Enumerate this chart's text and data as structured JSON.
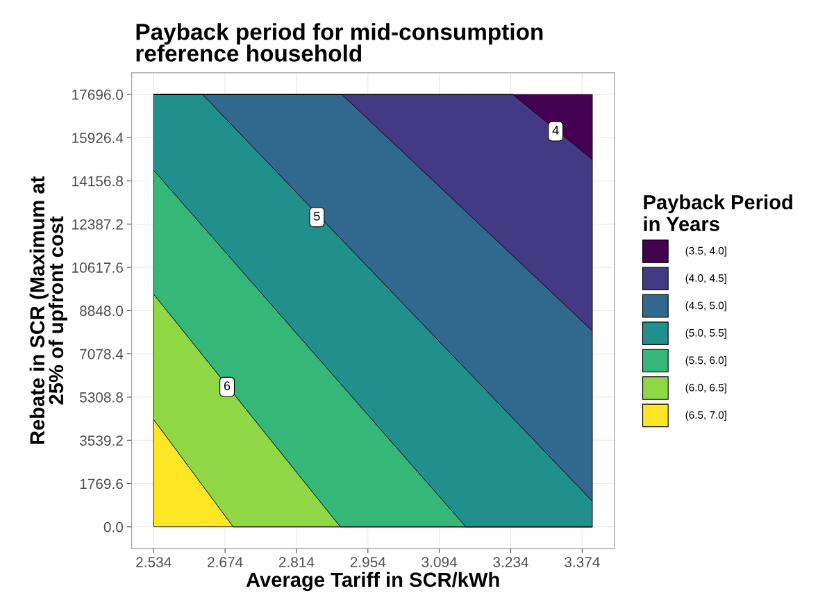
{
  "chart_data": {
    "type": "area",
    "stacked": true,
    "title": "Payback period for mid-consumption\nreference household",
    "xlabel": "Average Tariff in SCR/kWh",
    "ylabel": "Rebate in SCR (Maximum at\n25% of upfront cost",
    "legend_title": "Payback Period\nin Years",
    "legend": "right",
    "grid": true,
    "x": [
      2.534,
      2.63,
      2.69,
      2.9,
      2.903,
      3.146,
      3.238,
      3.394
    ],
    "series": [
      {
        "name": "(6.5, 7.0]",
        "color": "#fde725",
        "values": [
          4394,
          1690,
          0,
          0,
          0,
          0,
          0,
          0
        ]
      },
      {
        "name": "(6.0, 6.5]",
        "color": "#8fd744",
        "values": [
          5132,
          5337,
          5466,
          0,
          0,
          0,
          0,
          0
        ]
      },
      {
        "name": "(5.5, 6.0]",
        "color": "#35b779",
        "values": [
          5074,
          5283,
          5412,
          5869,
          5797,
          0,
          0,
          0
        ]
      },
      {
        "name": "(5.0, 5.5]",
        "color": "#21908c",
        "values": [
          3096,
          5386,
          5511,
          5944,
          5951,
          6453,
          4448,
          1049
        ]
      },
      {
        "name": "(4.5, 5.0]",
        "color": "#31688e",
        "values": [
          0,
          0,
          1307,
          5883,
          5948,
          6456,
          6648,
          6974
        ]
      },
      {
        "name": "(4.0, 4.5]",
        "color": "#443a83",
        "values": [
          0,
          0,
          0,
          0,
          0,
          4787,
          6600,
          7014
        ]
      },
      {
        "name": "(3.5, 4.0]",
        "color": "#440154",
        "values": [
          0,
          0,
          0,
          0,
          0,
          0,
          0,
          2659
        ]
      }
    ],
    "xlim": [
      2.491,
      3.437
    ],
    "ylim": [
      -885,
      18581
    ],
    "xticks": [
      2.534,
      2.674,
      2.814,
      2.954,
      3.094,
      3.234,
      3.374
    ],
    "yticks": [
      {
        "value": 0,
        "label": "0.0"
      },
      1769.6,
      3539.2,
      5308.8,
      7078.4,
      {
        "value": 8848,
        "label": "8848.0"
      },
      10617.6,
      12387.2,
      14156.8,
      15926.4,
      {
        "value": 17696,
        "label": "17696.0"
      }
    ],
    "annotations": [
      {
        "text": "4",
        "x": 3.322,
        "y": 16188
      },
      {
        "text": "5",
        "x": 2.854,
        "y": 12672
      },
      {
        "text": "6",
        "x": 2.678,
        "y": 5727
      }
    ]
  }
}
